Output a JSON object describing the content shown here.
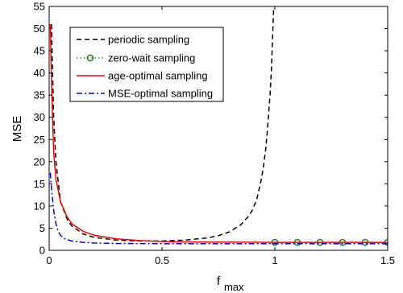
{
  "chart_data": {
    "type": "line",
    "xlabel": "f",
    "xlabel_sub": "max",
    "ylabel": "MSE",
    "xlim": [
      0,
      1.5
    ],
    "ylim": [
      0,
      55
    ],
    "xticks": [
      0,
      0.5,
      1,
      1.5
    ],
    "xtick_labels": [
      "0",
      "0.5",
      "1",
      "1.5"
    ],
    "yticks": [
      0,
      5,
      10,
      15,
      20,
      25,
      30,
      35,
      40,
      45,
      50,
      55
    ],
    "ytick_labels": [
      "0",
      "5",
      "10",
      "15",
      "20",
      "25",
      "30",
      "35",
      "40",
      "45",
      "50",
      "55"
    ],
    "grid": false,
    "legend_position": "top-left",
    "series": [
      {
        "name": "periodic sampling",
        "color": "#000000",
        "style": "dashed",
        "x": [
          0.01,
          0.02,
          0.03,
          0.05,
          0.08,
          0.1,
          0.15,
          0.2,
          0.3,
          0.4,
          0.5,
          0.6,
          0.7,
          0.75,
          0.8,
          0.85,
          0.88,
          0.9,
          0.92,
          0.94,
          0.95,
          0.96,
          0.97,
          0.98,
          0.985,
          0.99,
          0.995
        ],
        "y": [
          51,
          30,
          20,
          11,
          7,
          5.5,
          3.7,
          2.9,
          2.3,
          2.1,
          2.1,
          2.3,
          2.8,
          3.3,
          4.2,
          5.8,
          7.5,
          9,
          11.5,
          16,
          19,
          23,
          29,
          36,
          41,
          48,
          55
        ]
      },
      {
        "name": "zero-wait sampling",
        "color": "#2e8b2e",
        "style": "dotted-circle",
        "x": [
          1,
          1.1,
          1.2,
          1.3,
          1.4,
          1.5
        ],
        "y": [
          1.8,
          1.8,
          1.8,
          1.8,
          1.8,
          1.8
        ]
      },
      {
        "name": "age-optimal sampling",
        "color": "#ff0000",
        "style": "solid",
        "x": [
          0.005,
          0.01,
          0.02,
          0.03,
          0.05,
          0.08,
          0.1,
          0.15,
          0.2,
          0.3,
          0.4,
          0.5,
          0.6,
          0.8,
          1.0,
          1.2,
          1.5
        ],
        "y": [
          51,
          38,
          22,
          16,
          11,
          7.5,
          6,
          4.3,
          3.4,
          2.6,
          2.2,
          2.0,
          1.9,
          1.85,
          1.8,
          1.8,
          1.8
        ]
      },
      {
        "name": "MSE-optimal sampling",
        "color": "#0000ff",
        "style": "dashdot",
        "x": [
          0.005,
          0.01,
          0.02,
          0.03,
          0.04,
          0.05,
          0.07,
          0.1,
          0.15,
          0.2,
          0.3,
          0.5,
          0.7,
          1.0,
          1.5
        ],
        "y": [
          17.5,
          14,
          9,
          6,
          4.3,
          3.4,
          2.6,
          2.1,
          1.8,
          1.65,
          1.55,
          1.5,
          1.5,
          1.5,
          1.5
        ]
      }
    ]
  }
}
